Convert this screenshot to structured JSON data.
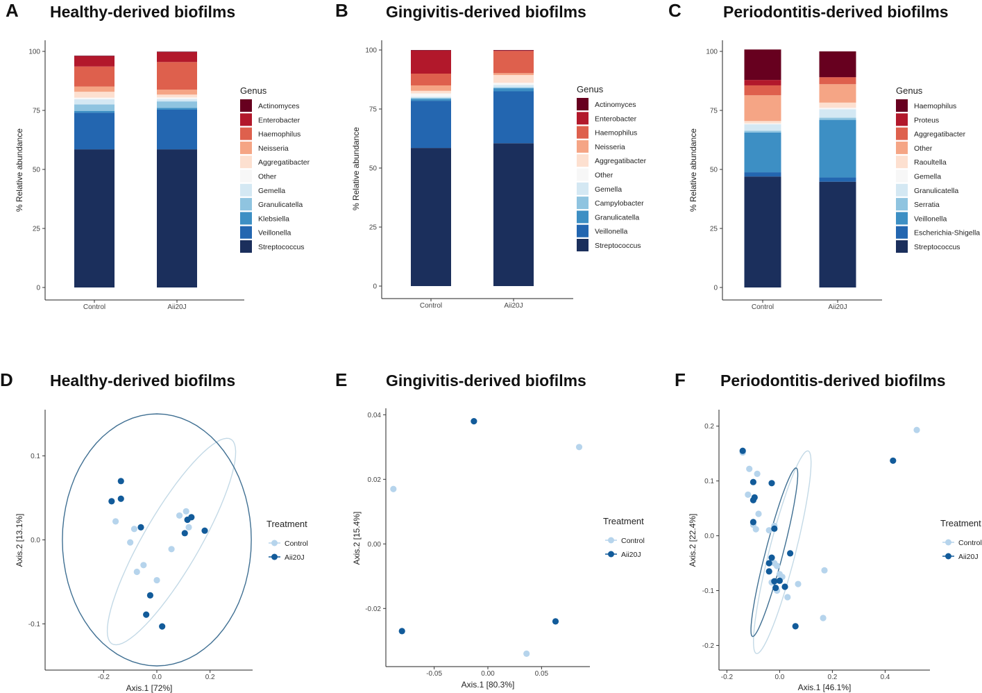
{
  "colors": {
    "control": "#b6d4ec",
    "aii20j": "#125b9a",
    "control_ellipse": "#c3d9e6",
    "aii20j_ellipse": "#3f6f92"
  },
  "chart_data": [
    {
      "letter": "A",
      "title": "Healthy-derived biofilms",
      "type": "bar",
      "stacked": true,
      "categories": [
        "Control",
        "Aii20J"
      ],
      "ylabel": "% Relative abundance",
      "xlabel": "",
      "ylim": [
        0,
        100
      ],
      "yticks": [
        "0",
        "25",
        "50",
        "75",
        "100"
      ],
      "legend_title": "Genus",
      "series": [
        {
          "name": "Streptococcus",
          "color": "#1b2f5c",
          "values": [
            58.5,
            58.5
          ]
        },
        {
          "name": "Veillonella",
          "color": "#2366b0",
          "values": [
            15.5,
            16.8
          ]
        },
        {
          "name": "Klebsiella",
          "color": "#3d8fc4",
          "values": [
            0.8,
            0.8
          ]
        },
        {
          "name": "Granulicatella",
          "color": "#8fc4e0",
          "values": [
            2.7,
            2.7
          ]
        },
        {
          "name": "Gemella",
          "color": "#d4e8f3",
          "values": [
            2.2,
            1.0
          ]
        },
        {
          "name": "Other",
          "color": "#f7f7f7",
          "values": [
            0.7,
            0.7
          ]
        },
        {
          "name": "Aggregatibacter",
          "color": "#fde0d0",
          "values": [
            2.5,
            1.2
          ]
        },
        {
          "name": "Neisseria",
          "color": "#f5a585",
          "values": [
            2.2,
            2.1
          ]
        },
        {
          "name": "Haemophilus",
          "color": "#de604d",
          "values": [
            8.5,
            11.7
          ]
        },
        {
          "name": "Enterobacter",
          "color": "#b2182b",
          "values": [
            4.4,
            4.2
          ]
        },
        {
          "name": "Actinomyces",
          "color": "#67001f",
          "values": [
            0.2,
            0.2
          ]
        }
      ]
    },
    {
      "letter": "B",
      "title": "Gingivitis-derived biofilms",
      "type": "bar",
      "stacked": true,
      "categories": [
        "Control",
        "Aii20J"
      ],
      "ylabel": "% Relative abundance",
      "xlabel": "",
      "ylim": [
        0,
        100
      ],
      "yticks": [
        "0",
        "25",
        "50",
        "75",
        "100"
      ],
      "legend_title": "Genus",
      "series": [
        {
          "name": "Streptococcus",
          "color": "#1b2f5c",
          "values": [
            58.5,
            60.5
          ]
        },
        {
          "name": "Veillonella",
          "color": "#2366b0",
          "values": [
            20.0,
            22.0
          ]
        },
        {
          "name": "Granulicatella",
          "color": "#3d8fc4",
          "values": [
            0.8,
            1.3
          ]
        },
        {
          "name": "Campylobacter",
          "color": "#8fc4e0",
          "values": [
            0.4,
            0.4
          ]
        },
        {
          "name": "Gemella",
          "color": "#d4e8f3",
          "values": [
            0.5,
            1.0
          ]
        },
        {
          "name": "Other",
          "color": "#f7f7f7",
          "values": [
            1.4,
            0.9
          ]
        },
        {
          "name": "Aggregatibacter",
          "color": "#fde0d0",
          "values": [
            1.1,
            3.3
          ]
        },
        {
          "name": "Neisseria",
          "color": "#f5a585",
          "values": [
            2.3,
            0.8
          ]
        },
        {
          "name": "Haemophilus",
          "color": "#de604d",
          "values": [
            5.0,
            9.4
          ]
        },
        {
          "name": "Enterobacter",
          "color": "#b2182b",
          "values": [
            9.8,
            0.2
          ]
        },
        {
          "name": "Actinomyces",
          "color": "#67001f",
          "values": [
            0.2,
            0.2
          ]
        }
      ]
    },
    {
      "letter": "C",
      "title": "Periodontitis-derived biofilms",
      "type": "bar",
      "stacked": true,
      "categories": [
        "Control",
        "Aii20J"
      ],
      "ylabel": "% Relative abundance",
      "xlabel": "",
      "ylim": [
        0,
        100
      ],
      "yticks": [
        "0",
        "25",
        "50",
        "75",
        "100"
      ],
      "legend_title": "Genus",
      "series": [
        {
          "name": "Streptococcus",
          "color": "#1b2f5c",
          "values": [
            47.0,
            44.8
          ]
        },
        {
          "name": "Escherichia-Shigella",
          "color": "#2366b0",
          "values": [
            1.8,
            1.8
          ]
        },
        {
          "name": "Veillonella",
          "color": "#3d8fc4",
          "values": [
            16.8,
            24.4
          ]
        },
        {
          "name": "Serratia",
          "color": "#8fc4e0",
          "values": [
            0.8,
            0.9
          ]
        },
        {
          "name": "Granulicatella",
          "color": "#d4e8f3",
          "values": [
            2.7,
            3.6
          ]
        },
        {
          "name": "Gemella",
          "color": "#f7f7f7",
          "values": [
            0.4,
            0.6
          ]
        },
        {
          "name": "Raoultella",
          "color": "#fde0d0",
          "values": [
            1.0,
            2.2
          ]
        },
        {
          "name": "Other",
          "color": "#f5a585",
          "values": [
            10.9,
            7.8
          ]
        },
        {
          "name": "Aggregatibacter",
          "color": "#de604d",
          "values": [
            4.2,
            2.9
          ]
        },
        {
          "name": "Proteus",
          "color": "#b2182b",
          "values": [
            2.3,
            0.1
          ]
        },
        {
          "name": "Haemophilus",
          "color": "#67001f",
          "values": [
            12.9,
            10.9
          ]
        }
      ]
    },
    {
      "letter": "D",
      "title": "Healthy-derived biofilms",
      "type": "scatter",
      "xlabel": "Axis.1   [72%]",
      "ylabel": "Axis.2   [13.1%]",
      "xlim": [
        -0.42,
        0.36
      ],
      "ylim": [
        -0.155,
        0.155
      ],
      "xticks": [
        -0.2,
        0,
        0.2
      ],
      "xtick_labels": [
        "-0.2",
        "0.0",
        "0.2"
      ],
      "yticks": [
        -0.1,
        0,
        0.1
      ],
      "ytick_labels": [
        "-0.1",
        "0.0",
        "0.1"
      ],
      "legend_title": "Treatment",
      "groups": [
        "Control",
        "Aii20J"
      ],
      "series": [
        {
          "name": "Control",
          "points": [
            [
              -0.155,
              0.022
            ],
            [
              -0.085,
              0.013
            ],
            [
              -0.1,
              -0.003
            ],
            [
              -0.05,
              -0.03
            ],
            [
              -0.075,
              -0.038
            ],
            [
              0.0,
              -0.048
            ],
            [
              0.055,
              -0.011
            ],
            [
              0.085,
              0.029
            ],
            [
              0.11,
              0.034
            ],
            [
              0.12,
              0.015
            ]
          ]
        },
        {
          "name": "Aii20J",
          "points": [
            [
              -0.17,
              0.046
            ],
            [
              -0.135,
              0.049
            ],
            [
              -0.135,
              0.07
            ],
            [
              -0.06,
              0.015
            ],
            [
              -0.025,
              -0.066
            ],
            [
              -0.04,
              -0.089
            ],
            [
              0.02,
              -0.103
            ],
            [
              0.105,
              0.008
            ],
            [
              0.115,
              0.024
            ],
            [
              0.13,
              0.027
            ],
            [
              0.18,
              0.011
            ]
          ]
        }
      ],
      "ellipses": [
        {
          "name": "Control",
          "cx": 0.055,
          "cy": -0.002,
          "rx": 0.265,
          "ry": 0.056,
          "angle_deg": 25
        },
        {
          "name": "Aii20J",
          "cx": 0.0,
          "cy": 0.0,
          "rx": 0.355,
          "ry": 0.15,
          "angle_deg": 0
        }
      ]
    },
    {
      "letter": "E",
      "title": "Gingivitis-derived biofilms",
      "type": "scatter",
      "xlabel": "Axis.1   [80.3%]",
      "ylabel": "Axis.2   [15.4%]",
      "xlim": [
        -0.095,
        0.095
      ],
      "ylim": [
        -0.038,
        0.042
      ],
      "xticks": [
        -0.05,
        0,
        0.05
      ],
      "xtick_labels": [
        "-0.05",
        "0.00",
        "0.05"
      ],
      "yticks": [
        -0.02,
        0,
        0.02,
        0.04
      ],
      "ytick_labels": [
        "-0.02",
        "0.00",
        "0.02",
        "0.04"
      ],
      "legend_title": "Treatment",
      "groups": [
        "Control",
        "Aii20J"
      ],
      "series": [
        {
          "name": "Control",
          "points": [
            [
              -0.088,
              0.017
            ],
            [
              0.085,
              0.03
            ],
            [
              0.036,
              -0.034
            ]
          ]
        },
        {
          "name": "Aii20J",
          "points": [
            [
              -0.013,
              0.038
            ],
            [
              -0.08,
              -0.027
            ],
            [
              0.063,
              -0.024
            ]
          ]
        }
      ],
      "ellipses": []
    },
    {
      "letter": "F",
      "title": "Periodontitis-derived biofilms",
      "type": "scatter",
      "xlabel": "Axis.1   [46.1%]",
      "ylabel": "Axis.2   [22.4%]",
      "xlim": [
        -0.23,
        0.57
      ],
      "ylim": [
        -0.245,
        0.23
      ],
      "xticks": [
        -0.2,
        0,
        0.2,
        0.4
      ],
      "xtick_labels": [
        "-0.2",
        "0.0",
        "0.2",
        "0.4"
      ],
      "yticks": [
        -0.2,
        -0.1,
        0,
        0.1,
        0.2
      ],
      "ytick_labels": [
        "-0.2",
        "-0.1",
        "0.0",
        "0.1",
        "0.2"
      ],
      "legend_title": "Treatment",
      "groups": [
        "Control",
        "Aii20J"
      ],
      "series": [
        {
          "name": "Control",
          "points": [
            [
              -0.14,
              0.152
            ],
            [
              -0.115,
              0.122
            ],
            [
              -0.085,
              0.113
            ],
            [
              -0.12,
              0.075
            ],
            [
              -0.08,
              0.04
            ],
            [
              -0.1,
              0.02
            ],
            [
              -0.09,
              0.012
            ],
            [
              -0.04,
              0.01
            ],
            [
              -0.02,
              0.018
            ],
            [
              -0.02,
              -0.05
            ],
            [
              -0.01,
              -0.055
            ],
            [
              0.0,
              -0.07
            ],
            [
              0.01,
              -0.075
            ],
            [
              -0.03,
              -0.085
            ],
            [
              -0.01,
              -0.1
            ],
            [
              0.03,
              -0.112
            ],
            [
              0.07,
              -0.088
            ],
            [
              0.17,
              -0.063
            ],
            [
              0.165,
              -0.15
            ],
            [
              0.52,
              0.193
            ]
          ]
        },
        {
          "name": "Aii20J",
          "points": [
            [
              -0.14,
              0.155
            ],
            [
              -0.1,
              0.098
            ],
            [
              -0.1,
              0.065
            ],
            [
              -0.095,
              0.07
            ],
            [
              -0.03,
              0.096
            ],
            [
              -0.1,
              0.025
            ],
            [
              -0.02,
              0.013
            ],
            [
              -0.04,
              -0.05
            ],
            [
              -0.04,
              -0.065
            ],
            [
              -0.03,
              -0.04
            ],
            [
              -0.02,
              -0.083
            ],
            [
              0.0,
              -0.082
            ],
            [
              -0.015,
              -0.095
            ],
            [
              0.02,
              -0.093
            ],
            [
              0.04,
              -0.032
            ],
            [
              0.06,
              -0.165
            ],
            [
              0.43,
              0.137
            ]
          ]
        }
      ],
      "ellipses": [
        {
          "name": "Control",
          "cx": 0.01,
          "cy": -0.03,
          "rx": 0.21,
          "ry": 0.045,
          "angle_deg": 61
        },
        {
          "name": "Aii20J",
          "cx": -0.02,
          "cy": -0.03,
          "rx": 0.175,
          "ry": 0.03,
          "angle_deg": 61
        }
      ]
    }
  ]
}
